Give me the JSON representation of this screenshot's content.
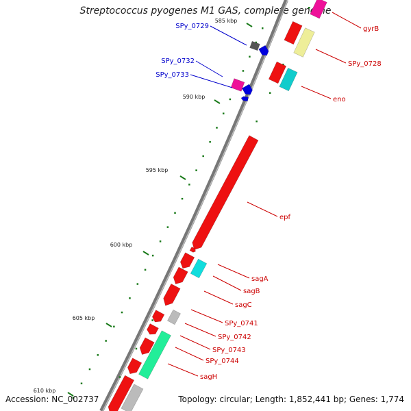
{
  "title": "Streptococcus pyogenes M1 GAS, complete genome",
  "footer": {
    "accession": "Accession: NC_002737",
    "summary": "Topology: circular; Length: 1,852,441 bp; Genes: 1,774"
  },
  "colors": {
    "backbone": "#777777",
    "tick": "#1a7a1a",
    "label_blue": "#0000cc",
    "label_red": "#cc0000"
  },
  "ticks": [
    {
      "label": "585 kbp"
    },
    {
      "label": "590 kbp"
    },
    {
      "label": "595 kbp"
    },
    {
      "label": "600 kbp"
    },
    {
      "label": "605 kbp"
    },
    {
      "label": "610 kbp"
    }
  ],
  "genes_left": [
    {
      "label": "SPy_0729",
      "color": "#0000cc"
    },
    {
      "label": "SPy_0732",
      "color": "#0000cc"
    },
    {
      "label": "SPy_0733",
      "color": "#0000cc"
    }
  ],
  "genes_right": [
    {
      "label": "gyrB",
      "color": "#cc0000"
    },
    {
      "label": "SPy_0728",
      "color": "#cc0000"
    },
    {
      "label": "eno",
      "color": "#cc0000"
    },
    {
      "label": "epf",
      "color": "#cc0000"
    },
    {
      "label": "sagA",
      "color": "#cc0000"
    },
    {
      "label": "sagB",
      "color": "#cc0000"
    },
    {
      "label": "sagC",
      "color": "#cc0000"
    },
    {
      "label": "SPy_0741",
      "color": "#cc0000"
    },
    {
      "label": "SPy_0742",
      "color": "#cc0000"
    },
    {
      "label": "SPy_0743",
      "color": "#cc0000"
    },
    {
      "label": "SPy_0744",
      "color": "#cc0000"
    },
    {
      "label": "sagH",
      "color": "#cc0000"
    }
  ]
}
